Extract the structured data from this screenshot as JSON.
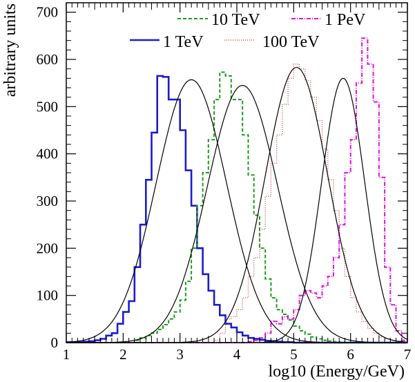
{
  "chart_data": {
    "type": "histogram",
    "xlabel": "log10 (Energy/GeV)",
    "ylabel": "arbitrary units",
    "xlim": [
      1,
      7
    ],
    "ylim": [
      0,
      720
    ],
    "xticks": [
      "1",
      "2",
      "3",
      "4",
      "5",
      "6",
      "7"
    ],
    "yticks": [
      "0",
      "100",
      "200",
      "300",
      "400",
      "500",
      "600",
      "700"
    ],
    "bin_width": 0.1,
    "series": [
      {
        "name": "1 TeV",
        "color": "#1c1ccc",
        "dash": "",
        "width": 2.6,
        "start": 1.0,
        "counts": [
          1,
          1,
          1,
          2,
          3,
          5,
          8,
          15,
          20,
          40,
          65,
          88,
          160,
          250,
          345,
          445,
          565,
          563,
          515,
          515,
          450,
          365,
          290,
          200,
          145,
          110,
          80,
          58,
          40,
          32,
          22,
          15,
          10,
          8,
          6,
          4,
          3,
          2,
          1,
          1,
          0,
          0,
          0,
          0,
          0,
          0,
          0,
          0,
          0,
          0,
          0,
          0,
          0,
          0,
          0,
          0,
          0,
          0,
          0,
          0
        ]
      },
      {
        "name": "10 TeV",
        "color": "#1a9c1a",
        "dash": "5,3",
        "width": 2,
        "start": 1.0,
        "counts": [
          0,
          0,
          0,
          0,
          0,
          0,
          0,
          0,
          0,
          0,
          0,
          0,
          5,
          10,
          15,
          20,
          28,
          38,
          50,
          65,
          90,
          130,
          200,
          290,
          360,
          430,
          515,
          573,
          565,
          515,
          515,
          440,
          355,
          270,
          200,
          135,
          95,
          70,
          60,
          48,
          35,
          25,
          18,
          12,
          8,
          5,
          3,
          2,
          1,
          0,
          0,
          0,
          0,
          0,
          0,
          0,
          0,
          0,
          0,
          0
        ]
      },
      {
        "name": "100 TeV",
        "color": "#c0504d",
        "dash": "1,2",
        "width": 1.4,
        "start": 1.0,
        "counts": [
          0,
          0,
          0,
          0,
          0,
          0,
          0,
          0,
          0,
          0,
          0,
          0,
          0,
          0,
          0,
          0,
          0,
          0,
          0,
          0,
          0,
          0,
          0,
          0,
          0,
          0,
          5,
          20,
          50,
          55,
          70,
          95,
          140,
          180,
          240,
          310,
          380,
          440,
          505,
          560,
          590,
          580,
          555,
          520,
          470,
          410,
          345,
          280,
          200,
          140,
          95,
          65,
          45,
          30,
          20,
          12,
          8,
          5,
          3,
          1
        ]
      },
      {
        "name": "1 PeV",
        "color": "#e011e0",
        "dash": "6,2,1,2",
        "width": 2,
        "start": 1.0,
        "counts": [
          0,
          0,
          0,
          0,
          0,
          0,
          0,
          0,
          0,
          0,
          0,
          0,
          0,
          0,
          0,
          0,
          0,
          0,
          0,
          0,
          0,
          0,
          0,
          0,
          0,
          0,
          0,
          0,
          0,
          0,
          0,
          0,
          2,
          5,
          10,
          20,
          45,
          40,
          55,
          50,
          70,
          100,
          110,
          105,
          95,
          120,
          140,
          180,
          250,
          360,
          430,
          550,
          645,
          590,
          510,
          350,
          160,
          80,
          25,
          5
        ]
      }
    ],
    "fits": [
      {
        "mu": 3.2,
        "sigma": 0.62,
        "amp": 557
      },
      {
        "mu": 4.1,
        "sigma": 0.62,
        "amp": 545
      },
      {
        "mu": 5.05,
        "sigma": 0.55,
        "amp": 583
      },
      {
        "mu": 5.87,
        "sigma": 0.38,
        "amp": 560
      }
    ],
    "fit_color": "#000000",
    "legend": {
      "row1": [
        {
          "series": "10 TeV",
          "label": "10 TeV"
        },
        {
          "series": "1 PeV",
          "label": "1 PeV"
        }
      ],
      "row2": [
        {
          "series": "1 TeV",
          "label": "1 TeV"
        },
        {
          "series": "100 TeV",
          "label": "100 TeV"
        }
      ],
      "placement": "top"
    }
  }
}
